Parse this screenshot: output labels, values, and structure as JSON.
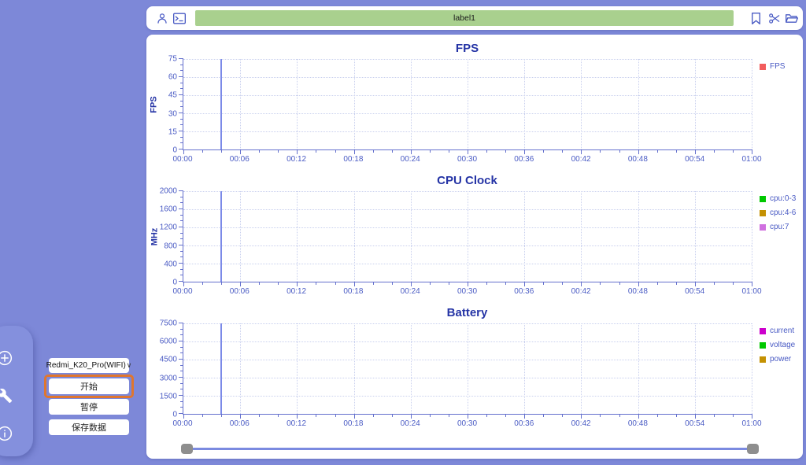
{
  "toolbar": {
    "label_value": "label1",
    "left_icons": [
      "person",
      "terminal"
    ],
    "right_icons": [
      "bookmark",
      "scissors",
      "folder"
    ]
  },
  "sidebar": {
    "rail_icons": [
      "add",
      "wrench",
      "info"
    ],
    "device_select": {
      "value": "Redmi_K20_Pro(WIFI)",
      "chevron": "∨"
    },
    "buttons": [
      {
        "label": "开始",
        "highlighted": true
      },
      {
        "label": "暂停",
        "highlighted": false
      },
      {
        "label": "保存数据",
        "highlighted": false
      }
    ]
  },
  "colors": {
    "background": "#7d88d8",
    "accent_highlight": "#e0762e",
    "label_bar_green": "#a9d08e",
    "axis": "#6470cd",
    "grid": "#c9d0ee",
    "tick_text": "#4a5bc4",
    "title_text": "#2433a5",
    "marker_line": "#7b8ae8",
    "slider_track": "#7b8ae0",
    "slider_handle": "#8e8e8e"
  },
  "chart_data": [
    {
      "type": "line",
      "title": "FPS",
      "ylabel": "FPS",
      "ylim": [
        0,
        75
      ],
      "yticks": [
        0,
        15,
        30,
        45,
        60,
        75
      ],
      "xticks": [
        "00:00",
        "00:06",
        "00:12",
        "00:18",
        "00:24",
        "00:30",
        "00:36",
        "00:42",
        "00:48",
        "00:54",
        "01:00"
      ],
      "x_range_seconds": [
        0,
        60
      ],
      "grid": true,
      "legend_position": "right",
      "series": [
        {
          "name": "FPS",
          "color": "#f25c5c",
          "values": []
        }
      ],
      "marker_line": {
        "time": "00:04",
        "seconds": 4
      }
    },
    {
      "type": "line",
      "title": "CPU Clock",
      "ylabel": "MHz",
      "ylim": [
        0,
        2000
      ],
      "yticks": [
        0,
        400,
        800,
        1200,
        1600,
        2000
      ],
      "xticks": [
        "00:00",
        "00:06",
        "00:12",
        "00:18",
        "00:24",
        "00:30",
        "00:36",
        "00:42",
        "00:48",
        "00:54",
        "01:00"
      ],
      "x_range_seconds": [
        0,
        60
      ],
      "grid": true,
      "legend_position": "right",
      "series": [
        {
          "name": "cpu:0-3",
          "color": "#00c800",
          "values": []
        },
        {
          "name": "cpu:4-6",
          "color": "#c49102",
          "values": []
        },
        {
          "name": "cpu:7",
          "color": "#d070e0",
          "values": []
        }
      ],
      "marker_line": {
        "time": "00:04",
        "seconds": 4
      }
    },
    {
      "type": "line",
      "title": "Battery",
      "ylabel": "",
      "ylim": [
        0,
        7500
      ],
      "yticks": [
        0,
        1500,
        3000,
        4500,
        6000,
        7500
      ],
      "xticks": [
        "00:00",
        "00:06",
        "00:12",
        "00:18",
        "00:24",
        "00:30",
        "00:36",
        "00:42",
        "00:48",
        "00:54",
        "01:00"
      ],
      "x_range_seconds": [
        0,
        60
      ],
      "grid": true,
      "legend_position": "right",
      "series": [
        {
          "name": "current",
          "color": "#cc00cc",
          "values": []
        },
        {
          "name": "voltage",
          "color": "#00c800",
          "values": []
        },
        {
          "name": "power",
          "color": "#c49102",
          "values": []
        }
      ],
      "marker_line": {
        "time": "00:04",
        "seconds": 4
      }
    }
  ]
}
